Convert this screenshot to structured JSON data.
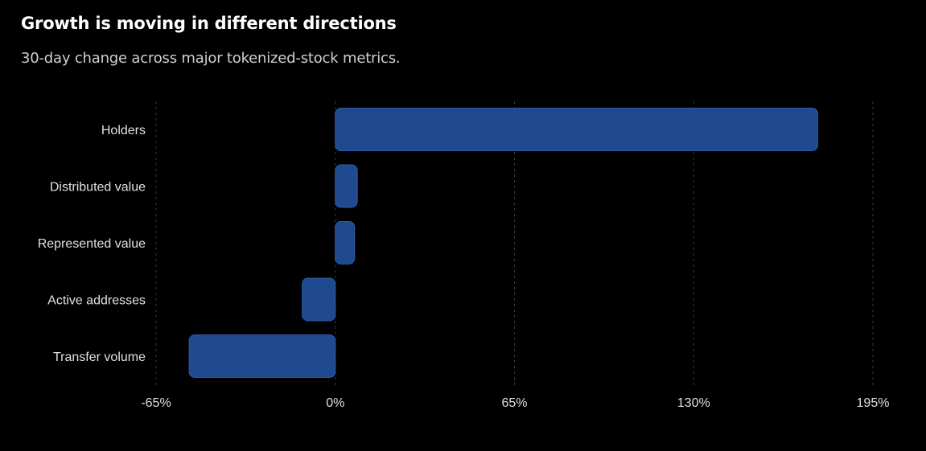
{
  "chart_data": {
    "type": "bar",
    "orientation": "horizontal",
    "title": "Growth is moving in different directions",
    "subtitle": "30-day change across major tokenized-stock metrics.",
    "categories": [
      "Holders",
      "Distributed value",
      "Represented value",
      "Active addresses",
      "Transfer volume"
    ],
    "values": [
      175,
      8,
      7,
      -12,
      -53
    ],
    "value_unit": "%",
    "xlim": [
      -65,
      195
    ],
    "xticks": [
      -65,
      0,
      65,
      130,
      195
    ],
    "xtick_labels": [
      "-65%",
      "0%",
      "65%",
      "130%",
      "195%"
    ],
    "grid": "vertical dashed",
    "bar_color": "#1f4a90",
    "background": "#000000"
  }
}
